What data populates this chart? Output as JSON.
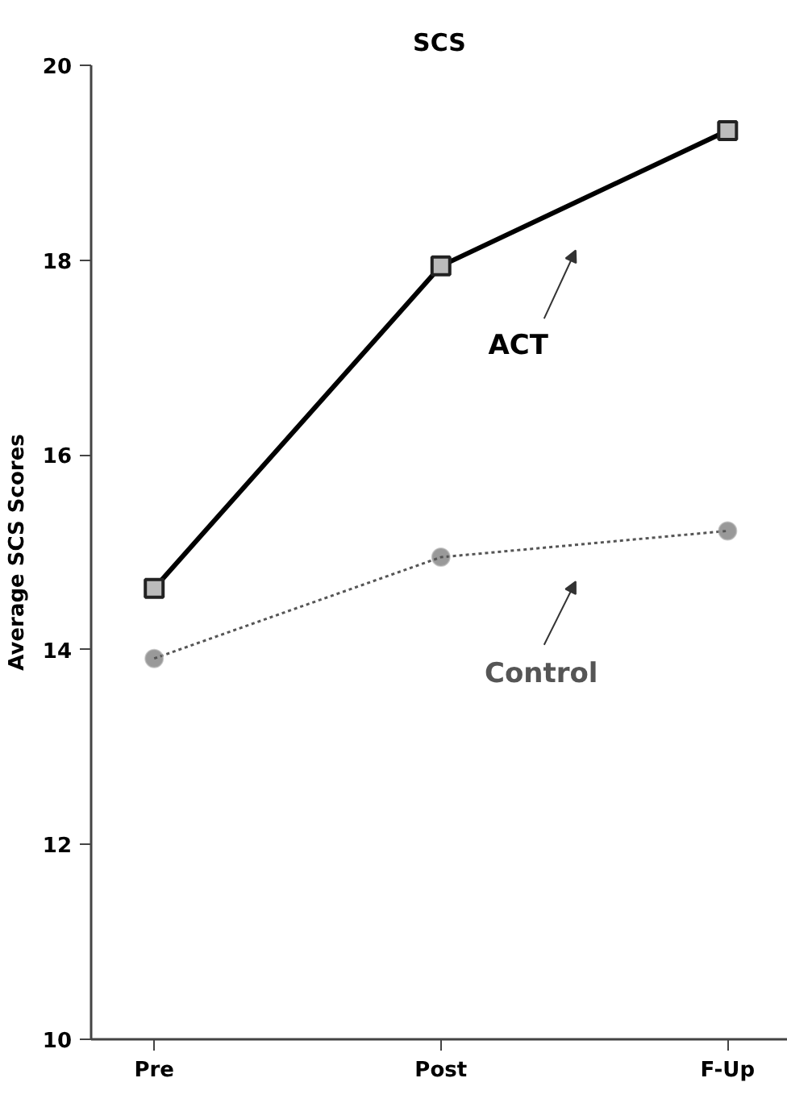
{
  "chart_data": {
    "type": "line",
    "title": "SCS",
    "ylabel": "Average SCS Scores",
    "categories": [
      "Pre",
      "Post",
      "F-Up"
    ],
    "series": [
      {
        "name": "ACT",
        "color": "#000000",
        "values": [
          14.63,
          17.94,
          19.33
        ],
        "marker": "square",
        "line_style": "solid"
      },
      {
        "name": "Control",
        "color": "#555555",
        "values": [
          13.91,
          14.95,
          15.22
        ],
        "marker": "circle",
        "line_style": "dotted"
      }
    ],
    "ylim": [
      10,
      20
    ],
    "yticks": [
      10,
      12,
      14,
      16,
      18,
      20
    ],
    "grid": false
  }
}
